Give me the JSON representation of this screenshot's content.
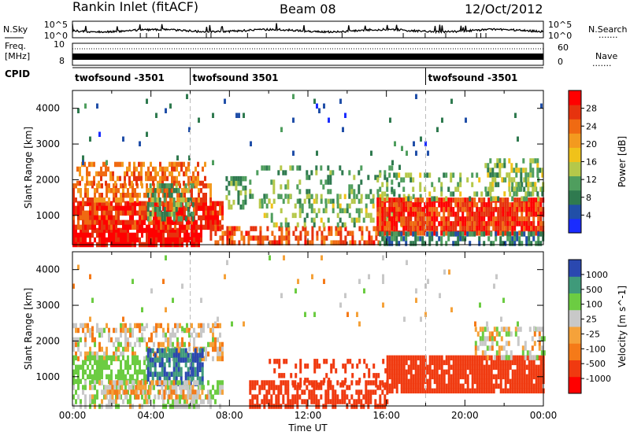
{
  "header": {
    "station": "Rankin Inlet (fitACF)",
    "beam": "Beam 08",
    "date": "12/Oct/2012"
  },
  "panel_labels": {
    "nsky": "N.Sky",
    "nsearch": "N.Search",
    "freq_line1": "Freq.",
    "freq_line2": "[MHz]",
    "nave": "Nave",
    "cpid": "CPID",
    "dots": "......."
  },
  "noise_axis": {
    "ticks": [
      "10^5",
      "10^0"
    ]
  },
  "freq_axis": {
    "left_ticks": [
      "10",
      "8"
    ],
    "right_ticks": [
      "60",
      "0"
    ]
  },
  "cpid_segments": [
    {
      "label": "twofsound -3501",
      "start_hour": 0,
      "end_hour": 6
    },
    {
      "label": "twofsound 3501",
      "start_hour": 6,
      "end_hour": 18
    },
    {
      "label": "twofsound -3501",
      "start_hour": 18,
      "end_hour": 24
    }
  ],
  "colors": {
    "power": [
      "#1a2cff",
      "#214fa8",
      "#2f7a4f",
      "#4f9e5e",
      "#b5c84a",
      "#f0c21a",
      "#f39a1f",
      "#f06a12",
      "#e6330e",
      "#ff0000"
    ],
    "velocity": [
      "#ff0000",
      "#f03a10",
      "#f57a18",
      "#f5a23a",
      "#c8c8c8",
      "#6ccc42",
      "#3f9a7a",
      "#2a48b0"
    ]
  },
  "chart_data": [
    {
      "type": "heatmap",
      "name": "power",
      "xlabel": "",
      "ylabel": "Slant Range [km]",
      "xlim": [
        0,
        24
      ],
      "ylim": [
        180,
        4500
      ],
      "y_ticks": [
        "1000",
        "2000",
        "3000",
        "4000"
      ],
      "colorbar_label": "Power [dB]",
      "colorbar_ticks": [
        "28",
        "24",
        "20",
        "16",
        "12",
        "8",
        "4"
      ],
      "colorbar_range": [
        0,
        30
      ],
      "blobs": [
        {
          "t0": 0.0,
          "t1": 6.6,
          "r0": 200,
          "r1": 650,
          "level": 28,
          "density": 0.9
        },
        {
          "t0": 0.0,
          "t1": 7.6,
          "r0": 650,
          "r1": 1400,
          "level": 26,
          "density": 0.85
        },
        {
          "t0": 0.0,
          "t1": 7.0,
          "r0": 1400,
          "r1": 1900,
          "level": 22,
          "density": 0.6
        },
        {
          "t0": 0.2,
          "t1": 6.8,
          "r0": 1900,
          "r1": 2500,
          "level": 22,
          "density": 0.55
        },
        {
          "t0": 3.8,
          "t1": 6.2,
          "r0": 900,
          "r1": 1900,
          "level": 10,
          "density": 0.5
        },
        {
          "t0": 7.8,
          "t1": 8.8,
          "r0": 1300,
          "r1": 2100,
          "level": 10,
          "density": 0.55
        },
        {
          "t0": 7.0,
          "t1": 16.0,
          "r0": 200,
          "r1": 700,
          "level": 24,
          "density": 0.55
        },
        {
          "t0": 9.5,
          "t1": 18.0,
          "r0": 700,
          "r1": 1600,
          "level": 12,
          "density": 0.35
        },
        {
          "t0": 9.0,
          "t1": 16.5,
          "r0": 1400,
          "r1": 2400,
          "level": 10,
          "density": 0.18
        },
        {
          "t0": 15.5,
          "t1": 24.0,
          "r0": 550,
          "r1": 1500,
          "level": 26,
          "density": 0.9
        },
        {
          "t0": 15.5,
          "t1": 24.0,
          "r0": 200,
          "r1": 550,
          "level": 8,
          "density": 0.55
        },
        {
          "t0": 15.5,
          "t1": 24.0,
          "r0": 1500,
          "r1": 2200,
          "level": 12,
          "density": 0.25
        },
        {
          "t0": 21.0,
          "t1": 24.0,
          "r0": 1600,
          "r1": 2600,
          "level": 12,
          "density": 0.5
        },
        {
          "t0": 0.0,
          "t1": 24.0,
          "r0": 2400,
          "r1": 4400,
          "level": 6,
          "density": 0.02
        }
      ]
    },
    {
      "type": "heatmap",
      "name": "velocity",
      "xlabel": "Time UT",
      "ylabel": "Slant Range [km]",
      "xlim": [
        0,
        24
      ],
      "ylim": [
        180,
        4500
      ],
      "x_ticks": [
        "00:00",
        "04:00",
        "08:00",
        "12:00",
        "16:00",
        "20:00",
        "00:00"
      ],
      "y_ticks": [
        "1000",
        "2000",
        "3000",
        "4000"
      ],
      "colorbar_label": "Velocity [m s^-1]",
      "colorbar_ticks": [
        "1000",
        "500",
        "100",
        "25",
        "-25",
        "-100",
        "-500",
        "-1000"
      ],
      "blobs": [
        {
          "t0": 0.0,
          "t1": 7.6,
          "r0": 1500,
          "r1": 2500,
          "level": 25,
          "density": 0.5
        },
        {
          "t0": 0.0,
          "t1": 3.8,
          "r0": 900,
          "r1": 1600,
          "level": 250,
          "density": 0.6
        },
        {
          "t0": 3.8,
          "t1": 6.6,
          "r0": 800,
          "r1": 1800,
          "level": 1000,
          "density": 0.8
        },
        {
          "t0": 0.0,
          "t1": 7.6,
          "r0": 200,
          "r1": 900,
          "level": 100,
          "density": 0.55
        },
        {
          "t0": 1.5,
          "t1": 7.0,
          "r0": 400,
          "r1": 900,
          "level": 0,
          "density": 0.45
        },
        {
          "t0": 9.0,
          "t1": 16.0,
          "r0": 200,
          "r1": 900,
          "level": -300,
          "density": 0.6
        },
        {
          "t0": 10.0,
          "t1": 16.0,
          "r0": 800,
          "r1": 1500,
          "level": -250,
          "density": 0.3
        },
        {
          "t0": 16.0,
          "t1": 24.0,
          "r0": 600,
          "r1": 1600,
          "level": -300,
          "density": 0.9
        },
        {
          "t0": 20.5,
          "t1": 24.0,
          "r0": 1600,
          "r1": 2400,
          "level": 50,
          "density": 0.4
        },
        {
          "t0": 0.0,
          "t1": 24.0,
          "r0": 2400,
          "r1": 4400,
          "level": 50,
          "density": 0.02
        }
      ]
    }
  ]
}
